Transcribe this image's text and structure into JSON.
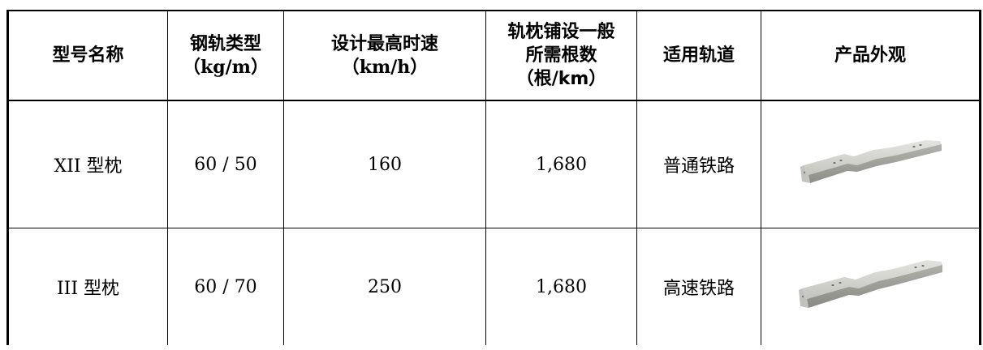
{
  "table": {
    "headers": {
      "model": "型号名称",
      "rail_type": [
        "钢轨类型",
        "（kg/m）"
      ],
      "design_speed": [
        "设计最高时速",
        "（km/h）"
      ],
      "sleepers_per_km": [
        "轨枕铺设一般",
        "所需根数",
        "（根/km）"
      ],
      "track": "适用轨道",
      "appearance": "产品外观"
    },
    "rows": [
      {
        "model": "XII 型枕",
        "rail_type": "60 / 50",
        "design_speed": "160",
        "sleepers_per_km": "1,680",
        "track": "普通铁路",
        "image_icon": "concrete-sleeper-image"
      },
      {
        "model": "III 型枕",
        "rail_type": "60 / 70",
        "design_speed": "250",
        "sleepers_per_km": "1,680",
        "track": "高速铁路",
        "image_icon": "concrete-sleeper-image"
      }
    ]
  },
  "colors": {
    "border": "#000000",
    "sleeper_top": "#d6d6d2",
    "sleeper_side": "#a9a9a4",
    "sleeper_end": "#c2c2bd"
  }
}
